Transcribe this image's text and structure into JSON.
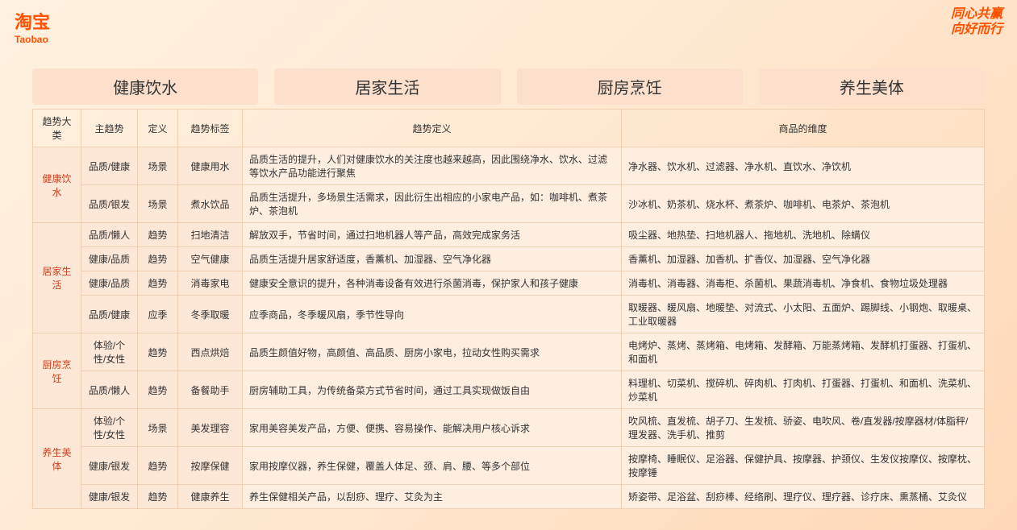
{
  "logo": {
    "cn": "淘宝",
    "en": "Taobao"
  },
  "tagline": {
    "line1": "同心共赢",
    "line2": "向好而行"
  },
  "tabs": [
    "健康饮水",
    "居家生活",
    "厨房烹饪",
    "养生美体"
  ],
  "headers": [
    "趋势大类",
    "主趋势",
    "定义",
    "趋势标签",
    "趋势定义",
    "商品的维度"
  ],
  "categories": [
    {
      "name": "健康饮水",
      "rows": [
        {
          "trend": "品质/健康",
          "def": "场景",
          "tag": "健康用水",
          "desc": "品质生活的提升，人们对健康饮水的关注度也越来越高，因此围绕净水、饮水、过滤等饮水产品功能进行聚焦",
          "products": "净水器、饮水机、过滤器、净水机、直饮水、净饮机"
        },
        {
          "trend": "品质/银发",
          "def": "场景",
          "tag": "煮水饮品",
          "desc": "品质生活提升，多场景生活需求，因此衍生出相应的小家电产品，如：咖啡机、煮茶炉、茶泡机",
          "products": "沙冰机、奶茶机、烧水杯、煮茶炉、咖啡机、电茶炉、茶泡机"
        }
      ]
    },
    {
      "name": "居家生活",
      "rows": [
        {
          "trend": "品质/懒人",
          "def": "趋势",
          "tag": "扫地清洁",
          "desc": "解放双手，节省时间，通过扫地机器人等产品，高效完成家务活",
          "products": "吸尘器、地热垫、扫地机器人、拖地机、洗地机、除螨仪"
        },
        {
          "trend": "健康/品质",
          "def": "趋势",
          "tag": "空气健康",
          "desc": "品质生活提升居家舒适度，香薰机、加湿器、空气净化器",
          "products": "香薰机、加湿器、加香机、扩香仪、加湿器、空气净化器"
        },
        {
          "trend": "健康/品质",
          "def": "趋势",
          "tag": "消毒家电",
          "desc": "健康安全意识的提升，各种消毒设备有效进行杀菌消毒，保护家人和孩子健康",
          "products": "消毒机、消毒器、消毒柜、杀菌机、果蔬消毒机、净食机、食物垃圾处理器"
        },
        {
          "trend": "品质/健康",
          "def": "应季",
          "tag": "冬季取暖",
          "desc": "应季商品，冬季暖风扇，季节性导向",
          "products": "取暖器、暖风扇、地暖垫、对流式、小太阳、五面炉、踢脚线、小钢炮、取暖桌、工业取暖器"
        }
      ]
    },
    {
      "name": "厨房烹饪",
      "rows": [
        {
          "trend": "体验/个性/女性",
          "def": "趋势",
          "tag": "西点烘焙",
          "desc": "品质生颜值好物，高颜值、高品质、厨房小家电，拉动女性购买需求",
          "products": "电烤炉、蒸烤、蒸烤箱、电烤箱、发酵箱、万能蒸烤箱、发酵机打蛋器、打蛋机、和面机"
        },
        {
          "trend": "品质/懒人",
          "def": "趋势",
          "tag": "备餐助手",
          "desc": "厨房辅助工具，为传统备菜方式节省时间，通过工具实现做饭自由",
          "products": "料理机、切菜机、搅碎机、碎肉机、打肉机、打蛋器、打蛋机、和面机、洗菜机、炒菜机"
        }
      ]
    },
    {
      "name": "养生美体",
      "rows": [
        {
          "trend": "体验/个性/女性",
          "def": "场景",
          "tag": "美发理容",
          "desc": "家用美容美发产品，方便、便携、容易操作、能解决用户核心诉求",
          "products": "吹风梳、直发梳、胡子刀、生发梳、骄姿、电吹风、卷/直发器/按摩器材/体脂秤/理发器、洗手机、推剪"
        },
        {
          "trend": "健康/银发",
          "def": "趋势",
          "tag": "按摩保健",
          "desc": "家用按摩仪器，养生保健，覆盖人体足、颈、肩、腰、等多个部位",
          "products": "按摩椅、睡眠仪、足浴器、保健护具、按摩器、护颈仪、生发仪按摩仪、按摩枕、按摩锤"
        },
        {
          "trend": "健康/银发",
          "def": "趋势",
          "tag": "健康养生",
          "desc": "养生保健相关产品，以刮痧、理疗、艾灸为主",
          "products": "矫姿带、足浴盆、刮痧棒、经络刷、理疗仪、理疗器、诊疗床、熏蒸桶、艾灸仪"
        }
      ]
    }
  ],
  "colors": {
    "brand": "#ff5000",
    "tab_bg": "#fce0cc",
    "cell_bg_light": "#fdeee0",
    "cell_bg_dark": "#fde8d8",
    "border": "#f0d0b0",
    "category_text": "#d04020"
  }
}
